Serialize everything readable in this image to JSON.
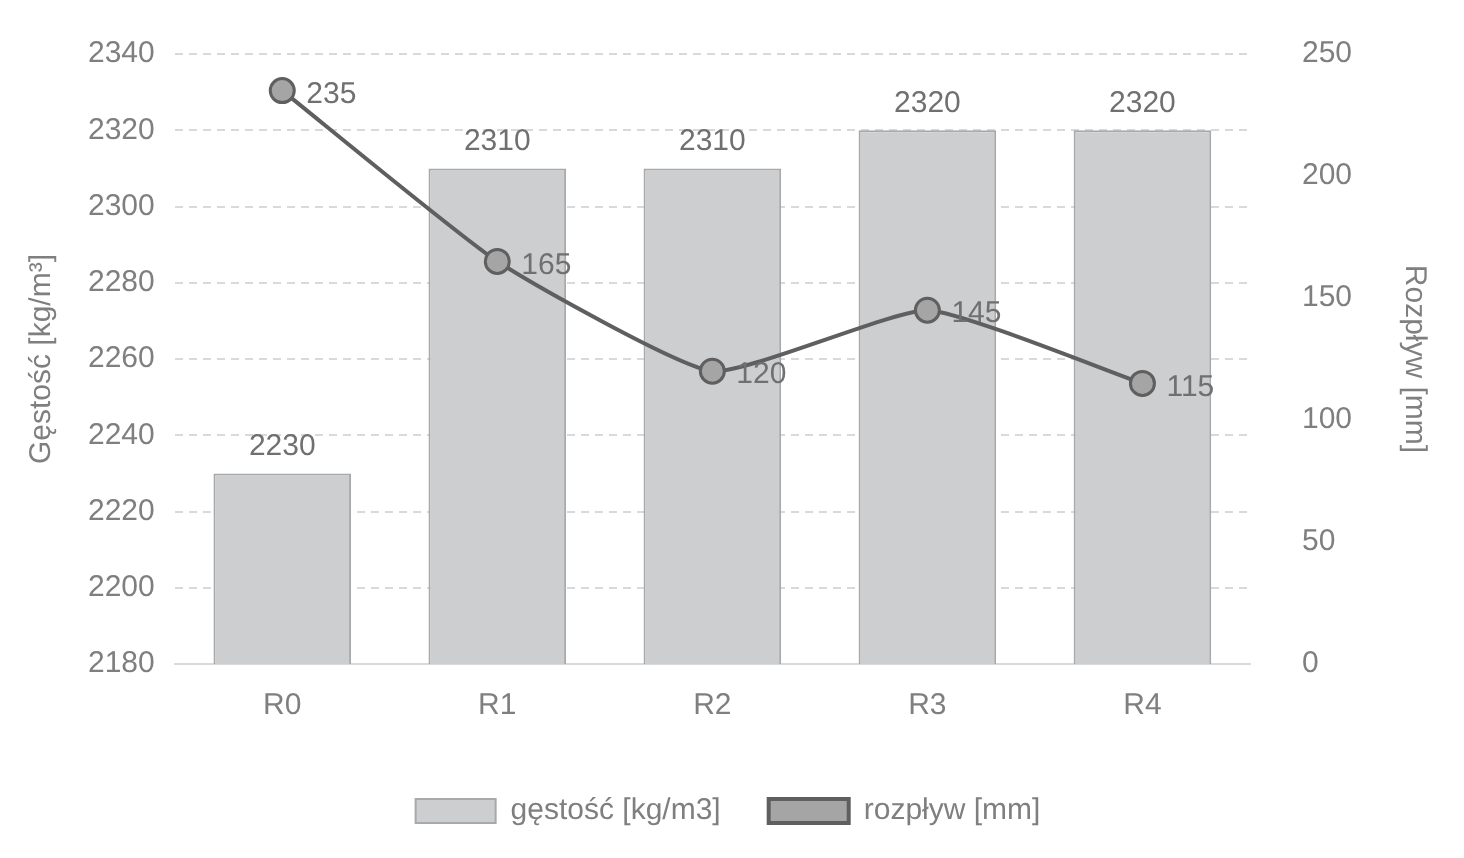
{
  "chart_data": {
    "type": "bar",
    "categories": [
      "R0",
      "R1",
      "R2",
      "R3",
      "R4"
    ],
    "ylabel": "Gęstość [kg/m³]",
    "y2label": "Rozpływ [mm]",
    "series": [
      {
        "name": "gęstość [kg/m3]",
        "color": "#cdcecf",
        "values": [
          2230,
          2310,
          2310,
          2320,
          2320
        ]
      },
      {
        "name": "rozpływ [mm]",
        "type": "line",
        "axis": "y2",
        "color": "#5f5f5f",
        "values": [
          235,
          165,
          120,
          145,
          115
        ]
      }
    ],
    "ylim": [
      2180,
      2340
    ],
    "yticks": [
      2180,
      2200,
      2220,
      2240,
      2260,
      2280,
      2300,
      2320,
      2340
    ],
    "y2lim": [
      0,
      250
    ],
    "y2ticks": [
      0,
      50,
      100,
      150,
      200,
      250
    ],
    "grid": "y",
    "legend": "bottom",
    "marker": "circle",
    "line_style": "solid",
    "data_labels": true
  }
}
